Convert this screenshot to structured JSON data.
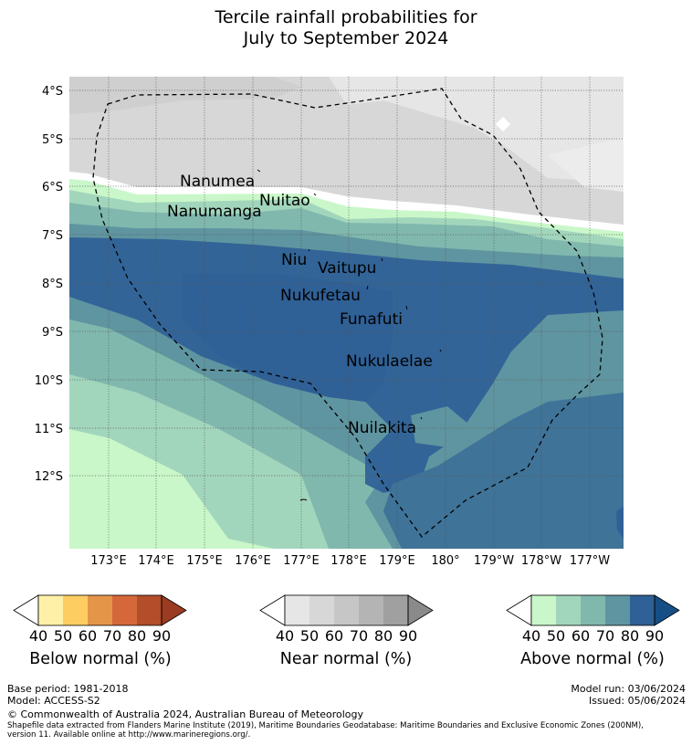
{
  "title": {
    "line1": "Tercile rainfall probabilities for",
    "line2": "July to September 2024"
  },
  "map": {
    "lat_labels": [
      "4°S",
      "5°S",
      "6°S",
      "7°S",
      "8°S",
      "9°S",
      "10°S",
      "11°S",
      "12°S"
    ],
    "lon_labels": [
      "173°E",
      "174°E",
      "175°E",
      "176°E",
      "177°E",
      "178°E",
      "179°E",
      "180°",
      "179°W",
      "178°W",
      "177°W"
    ],
    "places": [
      {
        "name": "Nanumea"
      },
      {
        "name": "Nuitao"
      },
      {
        "name": "Nanumanga"
      },
      {
        "name": "Niu"
      },
      {
        "name": "Vaitupu"
      },
      {
        "name": "Nukufetau"
      },
      {
        "name": "Funafuti"
      },
      {
        "name": "Nukulaelae"
      },
      {
        "name": "Nuilakita"
      }
    ]
  },
  "colorbars": [
    {
      "label": "Below normal (%)",
      "ticks": [
        "40",
        "50",
        "60",
        "70",
        "80",
        "90"
      ],
      "colors": [
        "#fff0a8",
        "#fdcd62",
        "#e59548",
        "#d4683a",
        "#b34d2a",
        "#9a3b22"
      ]
    },
    {
      "label": "Near normal (%)",
      "ticks": [
        "40",
        "50",
        "60",
        "70",
        "80",
        "90"
      ],
      "colors": [
        "#e6e6e6",
        "#d7d7d7",
        "#c6c6c6",
        "#b4b4b4",
        "#a0a0a0",
        "#8a8a8a"
      ]
    },
    {
      "label": "Above normal (%)",
      "ticks": [
        "40",
        "50",
        "60",
        "70",
        "80",
        "90"
      ],
      "colors": [
        "#c9f7c9",
        "#a2d6bc",
        "#80b8ae",
        "#5f95a0",
        "#2f6096",
        "#154f86"
      ]
    }
  ],
  "footer": {
    "base_period": "Base period: 1981-2018",
    "model": "Model: ACCESS-S2",
    "model_run": "Model run: 03/06/2024",
    "issued": "Issued: 05/06/2024",
    "copyright": "© Commonwealth of Australia 2024, Australian Bureau of Meteorology",
    "shapefile_line1": "Shapefile data extracted from Flanders Marine Institute (2019), Maritime Boundaries Geodatabase: Maritime Boundaries and Exclusive Economic Zones (200NM),",
    "shapefile_line2": "version 11. Available online at http://www.marineregions.org/."
  }
}
